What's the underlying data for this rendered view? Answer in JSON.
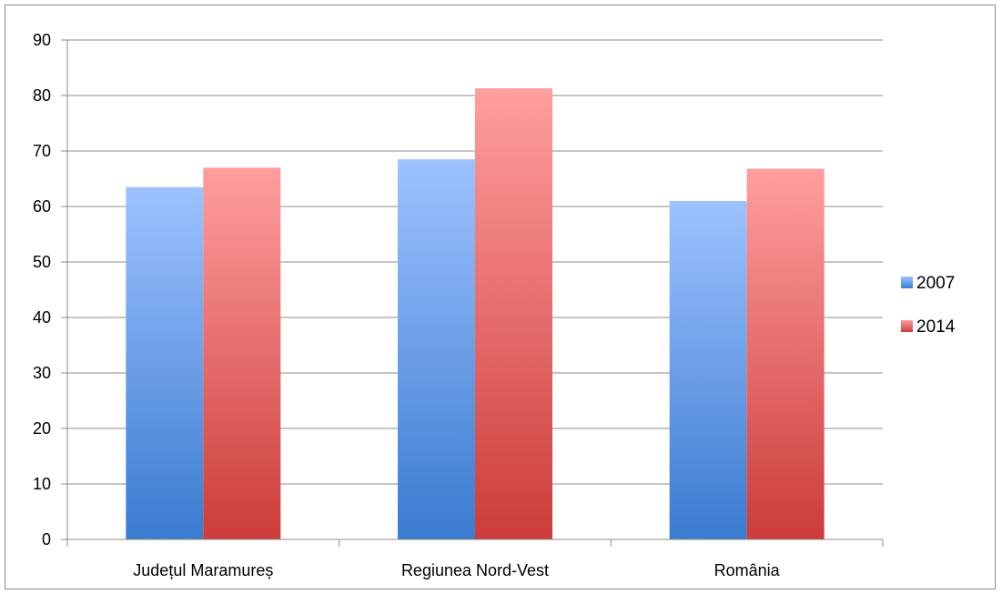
{
  "chart_data": {
    "type": "bar",
    "title": "",
    "xlabel": "",
    "ylabel": "",
    "categories": [
      "Județul Maramureș",
      "Regiunea Nord-Vest",
      "România"
    ],
    "series": [
      {
        "name": "2007",
        "values": [
          63.5,
          68.5,
          61.0
        ],
        "color_top": "#9ec2ff",
        "color_bottom": "#3a7bd0"
      },
      {
        "name": "2014",
        "values": [
          67.0,
          81.3,
          66.8
        ],
        "color_top": "#ff9e9e",
        "color_bottom": "#cc3c3a"
      }
    ],
    "ylim": [
      0,
      90
    ],
    "yticks": [
      0,
      10,
      20,
      30,
      40,
      50,
      60,
      70,
      80,
      90
    ],
    "grid": true,
    "legend_position": "right"
  }
}
